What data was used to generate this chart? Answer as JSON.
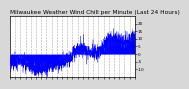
{
  "title": "Milwaukee Weather Wind Chill per Minute (Last 24 Hours)",
  "background_color": "#d8d8d8",
  "plot_bg_color": "#ffffff",
  "line_color": "#0000ff",
  "fill_color": "#0000ff",
  "ylim": [
    -15,
    25
  ],
  "yticks": [
    -10,
    -5,
    0,
    5,
    10,
    15,
    20
  ],
  "num_points": 1440,
  "grid_color": "#aaaaaa",
  "title_fontsize": 4.2,
  "tick_fontsize": 3.0,
  "num_xticks": 25,
  "seed": 99
}
